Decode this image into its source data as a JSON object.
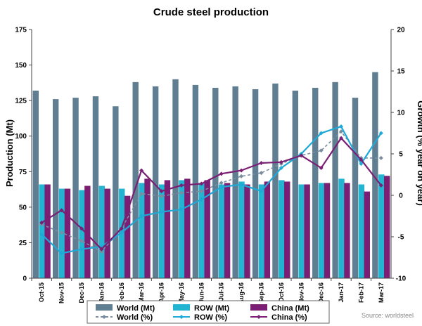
{
  "chart_data": {
    "type": "bar+line",
    "title": "Crude steel production",
    "ylabel": "Production (Mt)",
    "y2label": "Growth (% year on year)",
    "ylim": [
      0,
      175
    ],
    "y_ticks": [
      0,
      25,
      50,
      75,
      100,
      125,
      150,
      175
    ],
    "y2lim": [
      -10,
      20
    ],
    "y2_ticks": [
      -10,
      -5,
      0,
      5,
      10,
      15,
      20
    ],
    "categories": [
      "Oct-15",
      "Nov-15",
      "Dec-15",
      "Jan-16",
      "Feb-16",
      "Mar-16",
      "Apr-16",
      "May-16",
      "Jun-16",
      "Jul-16",
      "Aug-16",
      "Sep-16",
      "Oct-16",
      "Nov-16",
      "Dec-16",
      "Jan-17",
      "Feb-17",
      "Mar-17"
    ],
    "bar_series": [
      {
        "name": "World (Mt)",
        "color": "#5f7e92",
        "values": [
          132,
          126,
          127,
          128,
          121,
          138,
          135,
          140,
          136,
          134,
          135,
          133,
          137,
          132,
          134,
          138,
          127,
          145
        ]
      },
      {
        "name": "ROW (Mt)",
        "color": "#23b4d2",
        "values": [
          66,
          63,
          62,
          65,
          63,
          67,
          66,
          69,
          67,
          66,
          68,
          66,
          69,
          66,
          67,
          70,
          66,
          73
        ]
      },
      {
        "name": "China (Mt)",
        "color": "#7a1f74",
        "values": [
          66,
          63,
          65,
          63,
          58,
          70,
          69,
          70,
          69,
          67,
          66,
          68,
          68,
          66,
          67,
          67,
          61,
          72
        ]
      }
    ],
    "line_series": [
      {
        "name": "World (%)",
        "color": "#7a8da0",
        "values": [
          -3.5,
          -4.5,
          -5.5,
          -6.8,
          -4.0,
          0.2,
          -0.1,
          0.3,
          0.5,
          1.5,
          2.3,
          2.7,
          3.8,
          4.8,
          5.4,
          7.7,
          4.5,
          4.5
        ]
      },
      {
        "name": "ROW (%)",
        "color": "#1ea9d6",
        "values": [
          -4.7,
          -7.0,
          -6.5,
          -6.2,
          -4.5,
          -2.5,
          -2.0,
          -1.7,
          -0.5,
          1.0,
          1.3,
          0.5,
          3.3,
          5.0,
          7.5,
          8.3,
          3.8,
          7.5
        ]
      },
      {
        "name": "China (%)",
        "color": "#7a1f74",
        "values": [
          -3.3,
          -1.8,
          -4.0,
          -6.5,
          -4.0,
          3.0,
          0.5,
          1.2,
          1.4,
          2.6,
          3.0,
          3.9,
          4.0,
          4.8,
          3.3,
          6.9,
          4.3,
          1.2
        ]
      }
    ],
    "source": "Source: worldsteel"
  }
}
